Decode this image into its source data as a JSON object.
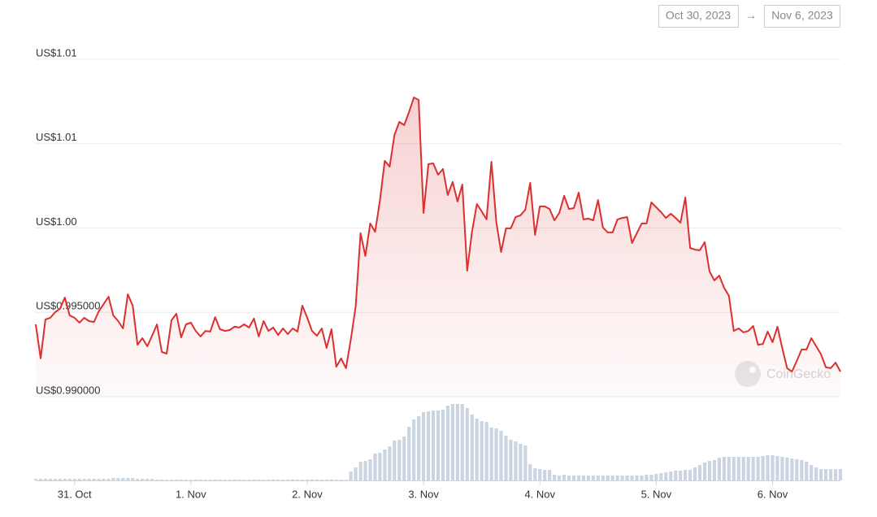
{
  "chart_data": {
    "type": "line",
    "range_start": "Oct 30, 2023",
    "range_arrow": "→",
    "range_end": "Nov 6, 2023",
    "watermark": "CoinGecko",
    "color": "#dc2f2f",
    "x": [
      -8,
      -7,
      -6,
      -5,
      -4,
      -3,
      -2,
      -1,
      0,
      1,
      2,
      3,
      4,
      5,
      6,
      7,
      8,
      9,
      10,
      11,
      12,
      13,
      14,
      15,
      16,
      17,
      18,
      19,
      20,
      21,
      22,
      23,
      24,
      25,
      26,
      27,
      28,
      29,
      30,
      31,
      32,
      33,
      34,
      35,
      36,
      37,
      38,
      39,
      40,
      41,
      42,
      43,
      44,
      45,
      46,
      47,
      48,
      49,
      50,
      51,
      52,
      53,
      54,
      55,
      56,
      57,
      58,
      59,
      60,
      61,
      62,
      63,
      64,
      65,
      66,
      67,
      68,
      69,
      70,
      71,
      72,
      73,
      74,
      75,
      76,
      77,
      78,
      79,
      80,
      81,
      82,
      83,
      84,
      85,
      86,
      87,
      88,
      89,
      90,
      91,
      92,
      93,
      94,
      95,
      96,
      97,
      98,
      99,
      100,
      101,
      102,
      103,
      104,
      105,
      106,
      107,
      108,
      109,
      110,
      111,
      112,
      113,
      114,
      115,
      116,
      117,
      118,
      119,
      120,
      121,
      122,
      123,
      124,
      125,
      126,
      127,
      128,
      129,
      130,
      131,
      132,
      133,
      134,
      135,
      136,
      137,
      138,
      139,
      140,
      141,
      142,
      143,
      144,
      145,
      146,
      147,
      148,
      149,
      150,
      151,
      152,
      153,
      154,
      155,
      156,
      157,
      158
    ],
    "values": [
      0.99429,
      0.99227,
      0.99458,
      0.99468,
      0.99501,
      0.99521,
      0.99588,
      0.99482,
      0.99468,
      0.99439,
      0.99468,
      0.99448,
      0.99443,
      0.99506,
      0.99549,
      0.99593,
      0.99482,
      0.99448,
      0.99405,
      0.99607,
      0.9954,
      0.99308,
      0.99347,
      0.99299,
      0.99361,
      0.99429,
      0.99265,
      0.99255,
      0.99453,
      0.99492,
      0.99352,
      0.99429,
      0.99439,
      0.9939,
      0.99357,
      0.9939,
      0.99386,
      0.99472,
      0.994,
      0.9939,
      0.99395,
      0.99415,
      0.9941,
      0.99429,
      0.9941,
      0.99463,
      0.99357,
      0.99448,
      0.9939,
      0.9941,
      0.99366,
      0.99405,
      0.99371,
      0.99405,
      0.99386,
      0.9954,
      0.99468,
      0.9939,
      0.99361,
      0.99405,
      0.99289,
      0.994,
      0.99178,
      0.99227,
      0.99169,
      0.99342,
      0.99535,
      0.99969,
      0.99834,
      1.00027,
      0.99978,
      1.00162,
      1.00398,
      1.00364,
      1.00552,
      1.00629,
      1.0061,
      1.00687,
      1.00774,
      1.00759,
      1.00089,
      1.00379,
      1.00383,
      1.00316,
      1.0035,
      1.00195,
      1.00273,
      1.00157,
      1.00258,
      0.99747,
      0.99978,
      1.00142,
      1.00099,
      1.00051,
      1.00393,
      1.00036,
      0.99858,
      0.99998,
      0.99998,
      1.00065,
      1.00075,
      1.00109,
      1.00268,
      0.99959,
      1.00128,
      1.00128,
      1.00113,
      1.00046,
      1.00089,
      1.00191,
      1.00113,
      1.00118,
      1.0021,
      1.00051,
      1.00056,
      1.00046,
      1.00166,
      1.00003,
      0.99974,
      0.99974,
      1.00051,
      1.0006,
      1.00065,
      0.99911,
      0.99969,
      1.00027,
      1.00027,
      1.00152,
      1.00123,
      1.00094,
      1.0006,
      1.00085,
      1.0006,
      1.00031,
      1.00181,
      0.99882,
      0.99872,
      0.99868,
      0.99916,
      0.99742,
      0.99689,
      0.99718,
      0.99646,
      0.99598,
      0.9939,
      0.99405,
      0.99381,
      0.9939,
      0.99419,
      0.99308,
      0.99313,
      0.99386,
      0.99323,
      0.99415,
      0.99289,
      0.99169,
      0.99149,
      0.99212,
      0.9928,
      0.9928,
      0.99347,
      0.99299,
      0.99251,
      0.99174,
      0.99169,
      0.99202,
      0.99149
    ],
    "xlim": [
      -8,
      158
    ],
    "xticks": [
      {
        "value": 0,
        "label": "31. Oct"
      },
      {
        "value": 24,
        "label": "1. Nov"
      },
      {
        "value": 48,
        "label": "2. Nov"
      },
      {
        "value": 72,
        "label": "3. Nov"
      },
      {
        "value": 96,
        "label": "4. Nov"
      },
      {
        "value": 120,
        "label": "5. Nov"
      },
      {
        "value": 144,
        "label": "6. Nov"
      }
    ],
    "ylim": [
      0.99,
      1.01
    ],
    "yticks": [
      {
        "value": 0.99,
        "label": "US$0.990000"
      },
      {
        "value": 0.995,
        "label": "US$0.995000"
      },
      {
        "value": 1.0,
        "label": "US$1.00"
      },
      {
        "value": 1.005,
        "label": "US$1.01"
      },
      {
        "value": 1.01,
        "label": "US$1.01"
      }
    ],
    "grid": true,
    "volume": {
      "color": "#cbd5e1",
      "ylim": [
        0,
        100
      ],
      "values": [
        2,
        2,
        2,
        2,
        2,
        2,
        2,
        2,
        2,
        2,
        2,
        2,
        2,
        2,
        2,
        2,
        3,
        3,
        3,
        3,
        3,
        2,
        2,
        2,
        2,
        1,
        1,
        1,
        1,
        1,
        1,
        1,
        1,
        1,
        1,
        1,
        1,
        1,
        1,
        1,
        1,
        1,
        1,
        1,
        1,
        1,
        1,
        1,
        1,
        1,
        1,
        1,
        1,
        1,
        1,
        1,
        1,
        1,
        1,
        1,
        1,
        1,
        1,
        1,
        1,
        11,
        16,
        23,
        24,
        26,
        33,
        34,
        38,
        42,
        49,
        50,
        54,
        66,
        75,
        79,
        84,
        85,
        86,
        86,
        87,
        92,
        94,
        94,
        94,
        89,
        81,
        76,
        73,
        72,
        65,
        64,
        61,
        55,
        50,
        48,
        45,
        43,
        20,
        15,
        14,
        13,
        13,
        7,
        6,
        7,
        6,
        6,
        6,
        6,
        6,
        6,
        6,
        6,
        6,
        6,
        6,
        6,
        6,
        6,
        6,
        6,
        7,
        7,
        8,
        9,
        10,
        11,
        12,
        12,
        13,
        13,
        16,
        19,
        22,
        24,
        25,
        28,
        29,
        29,
        29,
        29,
        29,
        29,
        29,
        29,
        30,
        31,
        31,
        30,
        29,
        28,
        27,
        26,
        25,
        23,
        19,
        16,
        14,
        14,
        14,
        14,
        14
      ]
    }
  }
}
